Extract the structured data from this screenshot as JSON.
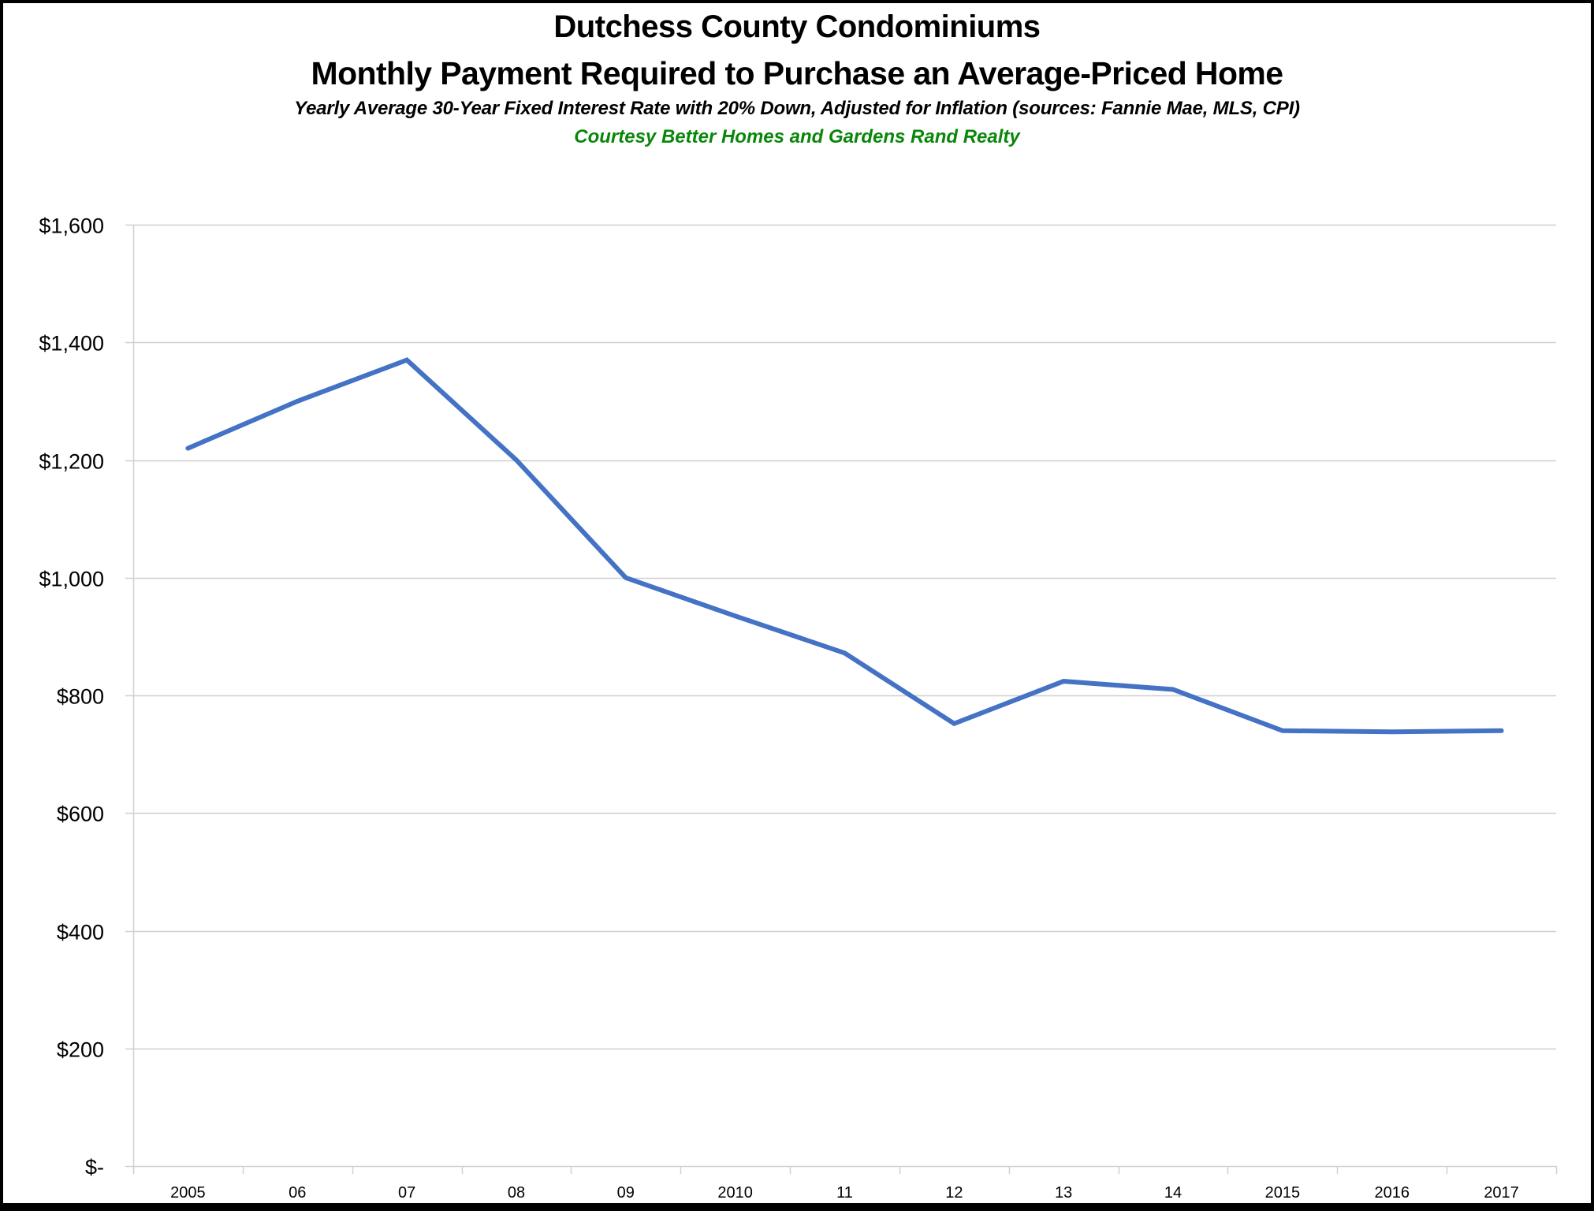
{
  "titles": {
    "line1": "Dutchess County Condominiums",
    "line2": "Monthly Payment Required to Purchase an Average-Priced Home",
    "subtitle": "Yearly Average 30-Year Fixed Interest Rate with 20% Down, Adjusted for Inflation (sources: Fannie Mae, MLS, CPI)",
    "credit": "Courtesy Better Homes and Gardens Rand Realty"
  },
  "colors": {
    "line": "#4472C4",
    "credit": "#0A860A",
    "gridline": "#D0D0D0",
    "border": "#000000"
  },
  "chart_data": {
    "type": "line",
    "title": "Dutchess County Condominiums — Monthly Payment Required to Purchase an Average-Priced Home",
    "subtitle": "Yearly Average 30-Year Fixed Interest Rate with 20% Down, Adjusted for Inflation (sources: Fannie Mae, MLS, CPI)",
    "annotation": "Courtesy Better Homes and Gardens Rand Realty",
    "xlabel": "",
    "ylabel": "",
    "categories": [
      "2005",
      "06",
      "07",
      "08",
      "09",
      "2010",
      "11",
      "12",
      "13",
      "14",
      "2015",
      "2016",
      "2017"
    ],
    "series": [
      {
        "name": "Monthly Payment",
        "color": "#4472C4",
        "values": [
          1220,
          1300,
          1370,
          1200,
          1000,
          935,
          872,
          752,
          824,
          810,
          740,
          738,
          740
        ]
      }
    ],
    "ylim": [
      0,
      1600
    ],
    "yticks": [
      0,
      200,
      400,
      600,
      800,
      1000,
      1200,
      1400,
      1600
    ],
    "ytick_labels": [
      "$-",
      "$200",
      "$400",
      "$600",
      "$800",
      "$1,000",
      "$1,200",
      "$1,400",
      "$1,600"
    ],
    "grid": {
      "horizontal": true,
      "vertical": false
    },
    "legend": "none"
  }
}
